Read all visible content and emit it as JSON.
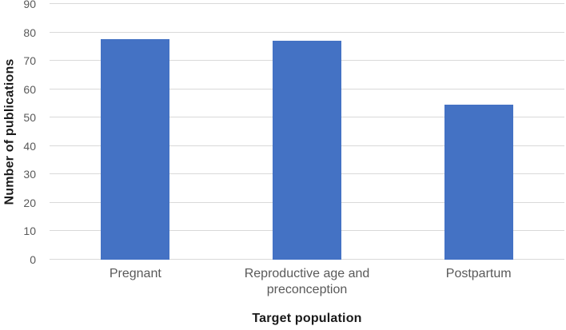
{
  "chart_data": {
    "type": "bar",
    "title": "",
    "categories": [
      "Pregnant",
      "Reproductive age and preconception",
      "Postpartum"
    ],
    "values": [
      77.5,
      77,
      54.5
    ],
    "series": [
      {
        "name": "Number of publications",
        "values": [
          77.5,
          77,
          54.5
        ]
      }
    ],
    "xlabel": "Target population",
    "ylabel": "Number of publications",
    "ylim": [
      0,
      90
    ],
    "ytick_step": 10,
    "yticks": [
      0,
      10,
      20,
      30,
      40,
      50,
      60,
      70,
      80,
      90
    ],
    "grid": "horizontal",
    "legend_position": "none",
    "colors": {
      "bar": "#4472C4",
      "gridline": "#D9D9D9",
      "tick_label": "#595959",
      "axis_title": "#1A1A1A",
      "background": "#FFFFFF"
    }
  }
}
